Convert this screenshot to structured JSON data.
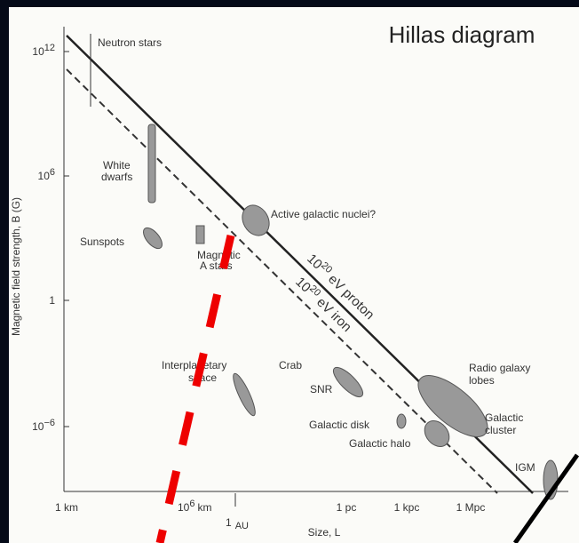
{
  "title": "Hillas diagram",
  "y_axis": {
    "label": "Magnetic field strength, B (G)",
    "ticks": [
      {
        "base": "10",
        "exp": "12"
      },
      {
        "base": "10",
        "exp": "6"
      },
      {
        "base": "1",
        "exp": ""
      },
      {
        "base": "10",
        "exp": "−6"
      }
    ]
  },
  "x_axis": {
    "label": "Size, L",
    "ticks": [
      "1 km",
      "10",
      "6",
      "km",
      "1",
      "AU",
      "1 pc",
      "1 kpc",
      "1 Mpc"
    ]
  },
  "lines": {
    "proton": {
      "base": "10",
      "exp": "20",
      "rest": " eV proton"
    },
    "iron": {
      "base": "10",
      "exp": "20",
      "rest": " eV iron"
    }
  },
  "objects": [
    "Neutron stars",
    "White",
    "dwarfs",
    "Sunspots",
    "Magnetic",
    "A stars",
    "Active galactic nuclei?",
    "Interplanetary",
    "space",
    "Crab",
    "SNR",
    "Radio galaxy",
    "lobes",
    "Galactic disk",
    "Galactic",
    "cluster",
    "Galactic halo",
    "IGM"
  ]
}
